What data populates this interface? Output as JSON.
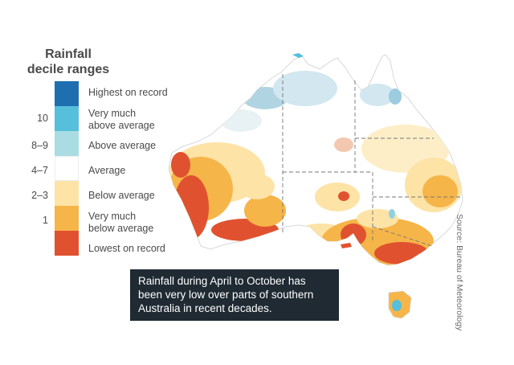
{
  "legend": {
    "title_line1": "Rainfall",
    "title_line2": "decile ranges",
    "items": [
      {
        "label": "Highest on record",
        "tick": "",
        "color": "#1f6fb0"
      },
      {
        "label": "Very much\nabove average",
        "tick": "10",
        "color": "#55bfdc"
      },
      {
        "label": "Above average",
        "tick": "8–9",
        "color": "#a9dde3"
      },
      {
        "label": "Average",
        "tick": "4–7",
        "color": "#ffffff"
      },
      {
        "label": "Below average",
        "tick": "2–3",
        "color": "#fde3a6"
      },
      {
        "label": "Very much\nbelow average",
        "tick": "1",
        "color": "#f6b549"
      },
      {
        "label": "Lowest on record",
        "tick": "",
        "color": "#e0522f"
      }
    ]
  },
  "caption": "Rainfall during April to October has been very low over parts of southern Australia in recent decades.",
  "source": "Source: Bureau of Meteorology"
}
